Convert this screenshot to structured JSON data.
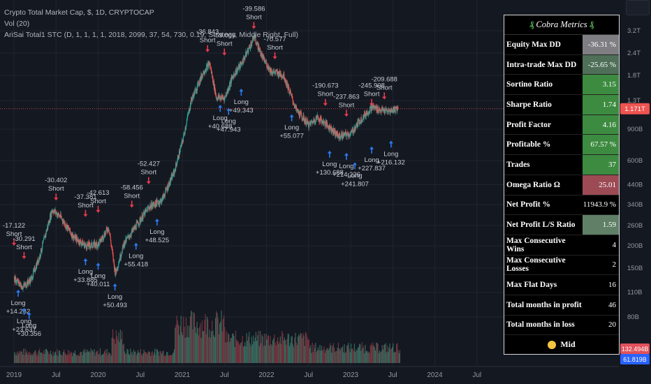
{
  "legend": {
    "line1": "Crypto Total Market Cap, $, 1D, CRYPTOCAP",
    "line2": "Vol (20)",
    "line3": "AriSai Total1 STC (D, 1, 1, 1, 1, 2018, 2099, 37, 54, 730, 0.19, Strategy, Middle Right, Full)"
  },
  "metrics": {
    "title": "Cobra Metrics",
    "rows": [
      {
        "label": "Equity Max DD",
        "value": "-36.31 %",
        "color": "#7f7f83"
      },
      {
        "label": "Intra-trade Max DD",
        "value": "-25.65 %",
        "color": "#4f6f58"
      },
      {
        "label": "Sortino Ratio",
        "value": "3.15",
        "color": "#3d8b40"
      },
      {
        "label": "Sharpe Ratio",
        "value": "1.74",
        "color": "#3d8b40"
      },
      {
        "label": "Profit Factor",
        "value": "4.16",
        "color": "#3d8b40"
      },
      {
        "label": "Profitable %",
        "value": "67.57 %",
        "color": "#3d8b40"
      },
      {
        "label": "Trades",
        "value": "37",
        "color": "#3d8b40"
      },
      {
        "label": "Omega Ratio Ω",
        "value": "25.01",
        "color": "#9c4b55"
      },
      {
        "label": "Net Profit %",
        "value": "11943.9 %",
        "color": "#000000"
      },
      {
        "label": "Net Profit L/S Ratio",
        "value": "1.59",
        "color": "#5f7f66"
      },
      {
        "label": "Max Consecutive Wins",
        "value": "4",
        "color": "#000000"
      },
      {
        "label": "Max Consecutive Losses",
        "value": "2",
        "color": "#000000"
      },
      {
        "label": "Max Flat Days",
        "value": "16",
        "color": "#000000"
      },
      {
        "label": "Total months in profit",
        "value": "46",
        "color": "#000000"
      },
      {
        "label": "Total months in loss",
        "value": "20",
        "color": "#000000"
      }
    ],
    "footer": "Mid"
  },
  "chart_data": {
    "type": "line",
    "x_ticks": [
      "2019",
      "Jul",
      "2020",
      "Jul",
      "2021",
      "Jul",
      "2022",
      "Jul",
      "2023",
      "Jul",
      "2024",
      "Jul"
    ],
    "y_ticks": [
      "3.2T",
      "2.4T",
      "1.8T",
      "1.3T",
      "900B",
      "600B",
      "440B",
      "340B",
      "260B",
      "200B",
      "150B",
      "110B",
      "80B"
    ],
    "y_scale": "log",
    "current_price_label": "1.171T",
    "volume_labels": [
      "132.494B",
      "61.819B"
    ],
    "price": [
      [
        2019.0,
        130
      ],
      [
        2019.1,
        118
      ],
      [
        2019.2,
        130
      ],
      [
        2019.3,
        175
      ],
      [
        2019.45,
        320
      ],
      [
        2019.55,
        290
      ],
      [
        2019.7,
        225
      ],
      [
        2019.85,
        200
      ],
      [
        2020.0,
        205
      ],
      [
        2020.12,
        255
      ],
      [
        2020.2,
        140
      ],
      [
        2020.3,
        205
      ],
      [
        2020.45,
        260
      ],
      [
        2020.6,
        330
      ],
      [
        2020.75,
        360
      ],
      [
        2020.9,
        520
      ],
      [
        2021.0,
        780
      ],
      [
        2021.1,
        1300
      ],
      [
        2021.25,
        1900
      ],
      [
        2021.32,
        2100
      ],
      [
        2021.4,
        1350
      ],
      [
        2021.5,
        1350
      ],
      [
        2021.6,
        1800
      ],
      [
        2021.7,
        2100
      ],
      [
        2021.85,
        2950
      ],
      [
        2021.95,
        2250
      ],
      [
        2022.05,
        1900
      ],
      [
        2022.2,
        1800
      ],
      [
        2022.35,
        1150
      ],
      [
        2022.5,
        950
      ],
      [
        2022.6,
        1050
      ],
      [
        2022.75,
        920
      ],
      [
        2022.85,
        820
      ],
      [
        2023.0,
        850
      ],
      [
        2023.1,
        1000
      ],
      [
        2023.25,
        1200
      ],
      [
        2023.35,
        1150
      ],
      [
        2023.45,
        1130
      ],
      [
        2023.55,
        1180
      ]
    ],
    "annotations": [
      {
        "x": 2019.0,
        "y": 190,
        "text": [
          "-17.122",
          "Short"
        ],
        "pos": "above"
      },
      {
        "x": 2019.05,
        "y": 120,
        "text": [
          "Long",
          "+14.262"
        ],
        "pos": "below"
      },
      {
        "x": 2019.12,
        "y": 160,
        "text": [
          "-30.291",
          "Short"
        ],
        "pos": "above"
      },
      {
        "x": 2019.12,
        "y": 95,
        "text": [
          "Long",
          "+23.637"
        ],
        "pos": "below"
      },
      {
        "x": 2019.18,
        "y": 90,
        "text": [
          "Long",
          "+30.356"
        ],
        "pos": "below"
      },
      {
        "x": 2019.5,
        "y": 340,
        "text": [
          "-30.402",
          "Short"
        ],
        "pos": "above"
      },
      {
        "x": 2019.85,
        "y": 275,
        "text": [
          "-37.381",
          "Short"
        ],
        "pos": "above"
      },
      {
        "x": 2019.85,
        "y": 180,
        "text": [
          "Long",
          "+33.885"
        ],
        "pos": "below"
      },
      {
        "x": 2020.0,
        "y": 290,
        "text": [
          "-42.613",
          "Short"
        ],
        "pos": "above"
      },
      {
        "x": 2020.0,
        "y": 170,
        "text": [
          "Long",
          "+40.011"
        ],
        "pos": "below"
      },
      {
        "x": 2020.2,
        "y": 130,
        "text": [
          "Long",
          "+50.493"
        ],
        "pos": "below"
      },
      {
        "x": 2020.4,
        "y": 310,
        "text": [
          "-58.456",
          "Short"
        ],
        "pos": "above"
      },
      {
        "x": 2020.45,
        "y": 220,
        "text": [
          "Long",
          "+55.418"
        ],
        "pos": "below"
      },
      {
        "x": 2020.6,
        "y": 420,
        "text": [
          "-52.427",
          "Short"
        ],
        "pos": "above"
      },
      {
        "x": 2020.7,
        "y": 300,
        "text": [
          "Long",
          "+48.525"
        ],
        "pos": "below"
      },
      {
        "x": 2021.3,
        "y": 2300,
        "text": [
          "-36.843",
          "Short"
        ],
        "pos": "above"
      },
      {
        "x": 2021.45,
        "y": 1300,
        "text": [
          "Long",
          "+40.688"
        ],
        "pos": "below"
      },
      {
        "x": 2021.5,
        "y": 2200,
        "text": [
          "-59.066",
          "Short"
        ],
        "pos": "above"
      },
      {
        "x": 2021.55,
        "y": 1250,
        "text": [
          "Long",
          "+47.943"
        ],
        "pos": "below"
      },
      {
        "x": 2021.7,
        "y": 1600,
        "text": [
          "Long",
          "+49.343"
        ],
        "pos": "below"
      },
      {
        "x": 2021.85,
        "y": 3100,
        "text": [
          "-39.586",
          "Short"
        ],
        "pos": "above"
      },
      {
        "x": 2022.1,
        "y": 2100,
        "text": [
          "-70.577",
          "Short"
        ],
        "pos": "above"
      },
      {
        "x": 2022.3,
        "y": 1150,
        "text": [
          "Long",
          "+55.077"
        ],
        "pos": "below"
      },
      {
        "x": 2022.7,
        "y": 1150,
        "text": [
          "-190.673",
          "Short"
        ],
        "pos": "above"
      },
      {
        "x": 2022.75,
        "y": 720,
        "text": [
          "Long",
          "+130.688"
        ],
        "pos": "below"
      },
      {
        "x": 2022.95,
        "y": 1000,
        "text": [
          "-237.863",
          "Short"
        ],
        "pos": "above"
      },
      {
        "x": 2022.95,
        "y": 700,
        "text": [
          "Long",
          "+214.226"
        ],
        "pos": "below"
      },
      {
        "x": 2023.05,
        "y": 620,
        "text": [
          "Long",
          "+241.807"
        ],
        "pos": "below"
      },
      {
        "x": 2023.25,
        "y": 1150,
        "text": [
          "-245.908",
          "Short"
        ],
        "pos": "above"
      },
      {
        "x": 2023.25,
        "y": 760,
        "text": [
          "Long",
          "+227.837"
        ],
        "pos": "below"
      },
      {
        "x": 2023.4,
        "y": 1250,
        "text": [
          "-209.688",
          "Short"
        ],
        "pos": "above"
      },
      {
        "x": 2023.48,
        "y": 820,
        "text": [
          "Long",
          "+216.132"
        ],
        "pos": "below"
      }
    ]
  }
}
